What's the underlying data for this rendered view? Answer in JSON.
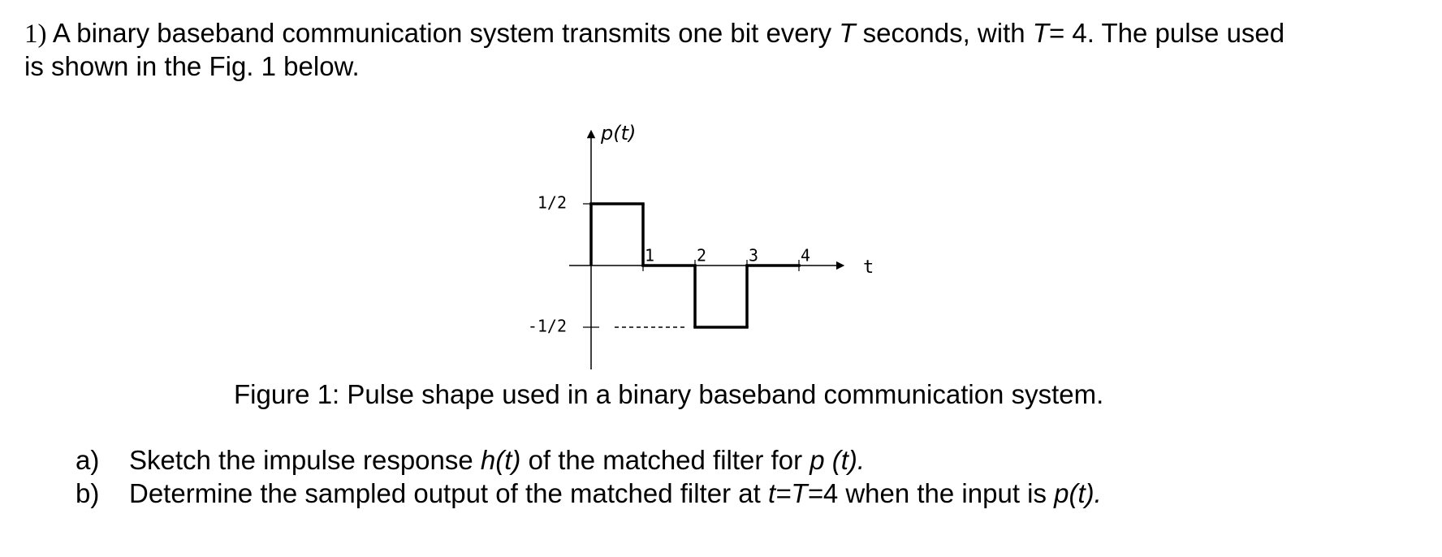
{
  "question": {
    "number": "1)",
    "intro": [
      "A binary baseband communication system transmits one bit every ",
      "T",
      "seconds, with ",
      "T",
      "= 4. The pulse used",
      "is shown in the Fig. 1 below."
    ],
    "figure": {
      "y_label": "p(t)",
      "x_label": "t",
      "pulse": [
        0.5,
        0,
        -0.5,
        0
      ],
      "xticks": [
        1,
        2,
        3,
        4
      ],
      "yticks": [
        {
          "value": 0.5,
          "label": "1/2"
        },
        {
          "value": -0.5,
          "label": "-1/2"
        }
      ],
      "caption": "Figure 1: Pulse shape used in a binary baseband communication system."
    },
    "parts": [
      {
        "label": "a)",
        "text": [
          "Sketch the impulse response ",
          "h(t)",
          " of the matched filter for ",
          "p (t)",
          "."
        ]
      },
      {
        "label": "b)",
        "text": [
          "Determine the sampled output of the matched filter at ",
          "t=T=",
          "4 when the input is ",
          "p(t)",
          "."
        ]
      }
    ]
  }
}
